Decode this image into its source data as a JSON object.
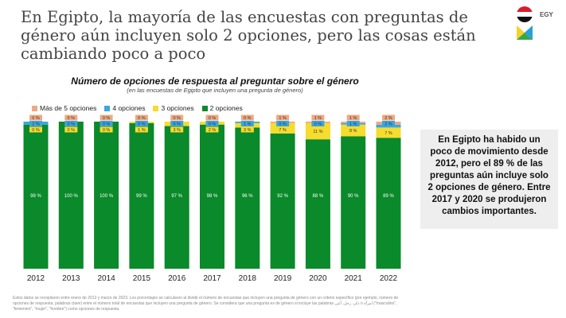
{
  "title": "En Egipto, la mayoría de las encuestas con preguntas de género aún incluyen solo 2 opciones, pero las cosas están cambiando poco a poco",
  "country_code": "EGY",
  "note": "En Egipto ha habido un poco de movimiento desde 2012, pero el 89 % de las preguntas aún incluye solo 2 opciones de género. Entre 2017 y 2020 se produjeron cambios importantes.",
  "footnote": "Estos datos se recopilaron entre enero de 2012 y marzo de 2023. Los porcentajes se calcularon al dividir el número de encuestas que incluyen una pregunta de género con un criterio específico (por ejemplo, número de opciones de respuesta, palabras clave) entre el número total de encuestas que incluyen una pregunta de género. Se considera que una pregunta es de género si incluye las palabras ذكر، رجل، أنثى o امرأة (\"masculino\", \"femenino\", \"mujer\", \"hombre\") como opciones de respuesta.",
  "chart_data": {
    "type": "bar",
    "stacked": true,
    "title": "Número de opciones de respuesta al preguntar sobre el género",
    "subtitle": "(en las encuestas de Egipto que incluyen una pregunta de género)",
    "categories": [
      "2012",
      "2013",
      "2014",
      "2015",
      "2016",
      "2017",
      "2018",
      "2019",
      "2020",
      "2021",
      "2022"
    ],
    "legend_position": "top",
    "ylim": [
      0,
      100
    ],
    "series": [
      {
        "name": "2 opciones",
        "color": "#0a8a2a",
        "values": [
          98,
          100,
          100,
          99,
          97,
          98,
          96,
          92,
          88,
          90,
          89
        ]
      },
      {
        "name": "3 opciones",
        "color": "#f6dc2c",
        "values": [
          0,
          0,
          0,
          1,
          3,
          2,
          3,
          7,
          11,
          8,
          7
        ]
      },
      {
        "name": "4 opciones",
        "color": "#3aa6e0",
        "values": [
          2,
          0,
          0,
          0,
          0,
          0,
          1,
          0,
          0,
          1,
          2
        ]
      },
      {
        "name": "Más de 5 opciones",
        "color": "#f0a882",
        "values": [
          0,
          0,
          0,
          0,
          0,
          0,
          0,
          1,
          1,
          1,
          2
        ]
      }
    ],
    "legend_order": [
      3,
      2,
      1,
      0
    ]
  }
}
